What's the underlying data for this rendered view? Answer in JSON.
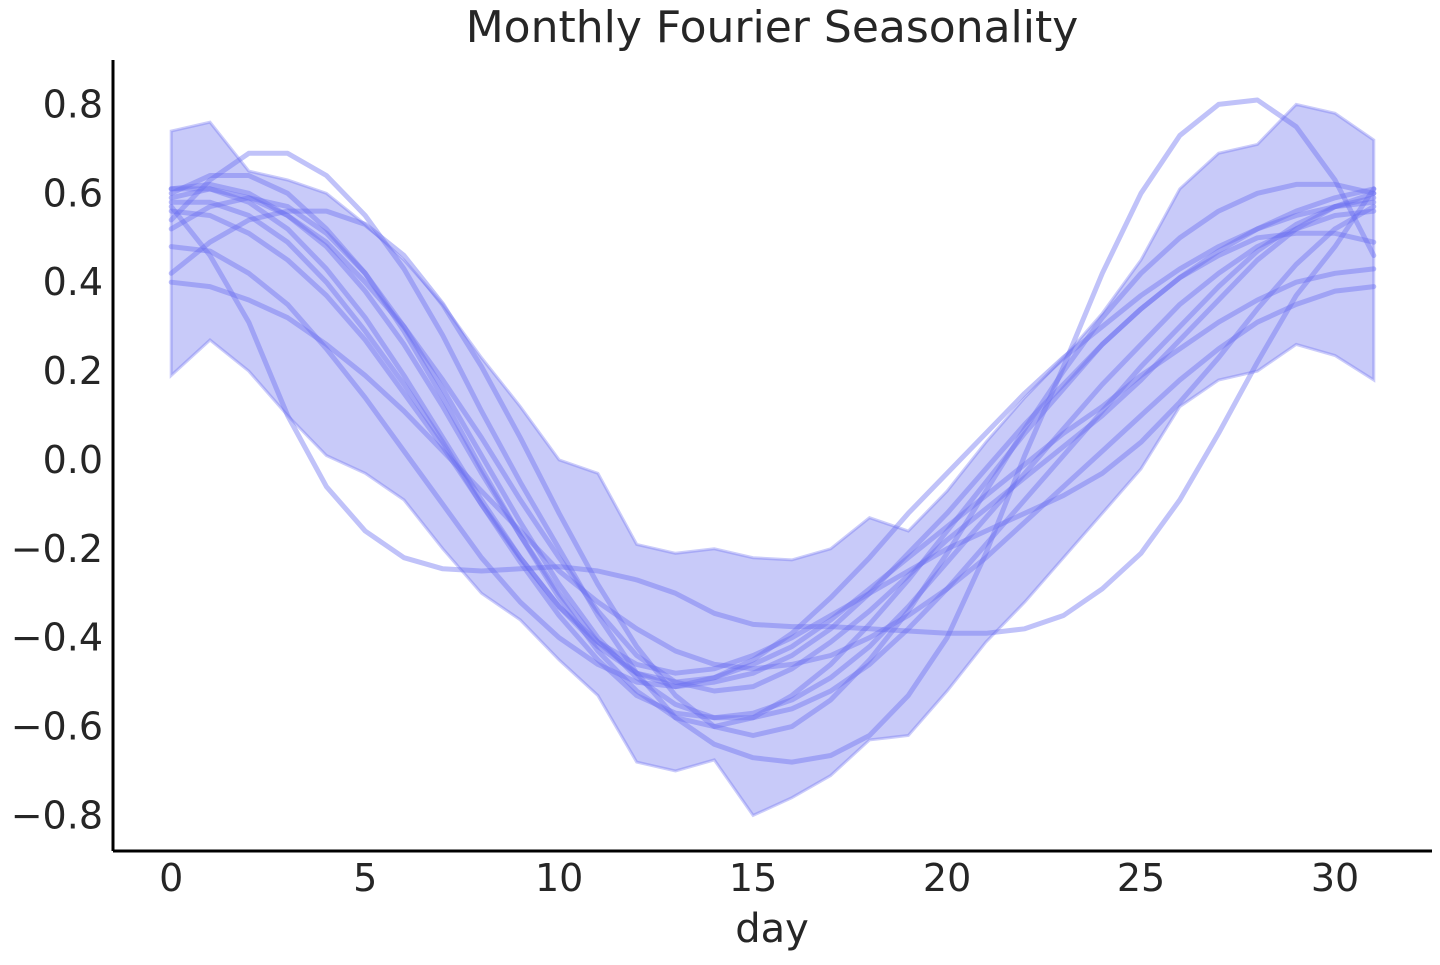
{
  "chart_data": {
    "type": "line",
    "title": "Monthly Fourier Seasonality",
    "xlabel": "day",
    "ylabel": "",
    "xlim": [
      -1.5,
      32.5
    ],
    "ylim": [
      -0.88,
      0.9
    ],
    "xticks": [
      0,
      5,
      10,
      15,
      20,
      25,
      30
    ],
    "xtick_labels": [
      "0",
      "5",
      "10",
      "15",
      "20",
      "25",
      "30"
    ],
    "yticks": [
      0.8,
      0.6,
      0.4,
      0.2,
      0.0,
      -0.2,
      -0.4,
      -0.6,
      -0.8
    ],
    "ytick_labels": [
      "0.8",
      "0.6",
      "0.4",
      "0.2",
      "0.0",
      "−0.2",
      "−0.4",
      "−0.6",
      "−0.8"
    ],
    "grid": false,
    "x": [
      0,
      1,
      2,
      3,
      4,
      5,
      6,
      7,
      8,
      9,
      10,
      11,
      12,
      13,
      14,
      15,
      16,
      17,
      18,
      19,
      20,
      21,
      22,
      23,
      24,
      25,
      26,
      27,
      28,
      29,
      30,
      31
    ],
    "band": {
      "upper": [
        0.74,
        0.76,
        0.65,
        0.63,
        0.6,
        0.53,
        0.45,
        0.35,
        0.23,
        0.12,
        0.0,
        -0.03,
        -0.19,
        -0.21,
        -0.2,
        -0.22,
        -0.225,
        -0.2,
        -0.13,
        -0.16,
        -0.07,
        0.04,
        0.14,
        0.23,
        0.33,
        0.45,
        0.61,
        0.69,
        0.71,
        0.8,
        0.78,
        0.72
      ],
      "lower": [
        0.19,
        0.27,
        0.2,
        0.1,
        0.01,
        -0.03,
        -0.09,
        -0.2,
        -0.3,
        -0.36,
        -0.45,
        -0.53,
        -0.68,
        -0.7,
        -0.675,
        -0.8,
        -0.76,
        -0.71,
        -0.63,
        -0.62,
        -0.52,
        -0.41,
        -0.32,
        -0.22,
        -0.12,
        -0.02,
        0.12,
        0.18,
        0.2,
        0.26,
        0.235,
        0.18
      ]
    },
    "color": "#6a6ef0",
    "band_color": "#c8caf9",
    "series": [
      {
        "values": [
          0.57,
          0.46,
          0.31,
          0.1,
          -0.06,
          -0.16,
          -0.22,
          -0.245,
          -0.25,
          -0.245,
          -0.24,
          -0.25,
          -0.27,
          -0.3,
          -0.345,
          -0.37,
          -0.375,
          -0.375,
          -0.38,
          -0.385,
          -0.39,
          -0.39,
          -0.38,
          -0.35,
          -0.29,
          -0.21,
          -0.09,
          0.06,
          0.22,
          0.37,
          0.48,
          0.61
        ]
      },
      {
        "values": [
          0.54,
          0.63,
          0.69,
          0.69,
          0.64,
          0.55,
          0.43,
          0.28,
          0.11,
          -0.05,
          -0.2,
          -0.35,
          -0.48,
          -0.58,
          -0.64,
          -0.67,
          -0.68,
          -0.665,
          -0.62,
          -0.53,
          -0.4,
          -0.21,
          0.01,
          0.21,
          0.42,
          0.6,
          0.73,
          0.8,
          0.81,
          0.75,
          0.63,
          0.46
        ]
      },
      {
        "values": [
          0.61,
          0.62,
          0.6,
          0.55,
          0.48,
          0.38,
          0.26,
          0.12,
          -0.03,
          -0.17,
          -0.3,
          -0.41,
          -0.48,
          -0.51,
          -0.5,
          -0.48,
          -0.44,
          -0.38,
          -0.3,
          -0.21,
          -0.12,
          -0.02,
          0.08,
          0.17,
          0.26,
          0.34,
          0.41,
          0.47,
          0.52,
          0.56,
          0.59,
          0.61
        ]
      },
      {
        "values": [
          0.58,
          0.58,
          0.55,
          0.49,
          0.4,
          0.29,
          0.17,
          0.04,
          -0.1,
          -0.23,
          -0.35,
          -0.45,
          -0.53,
          -0.57,
          -0.58,
          -0.57,
          -0.54,
          -0.49,
          -0.42,
          -0.33,
          -0.23,
          -0.13,
          -0.03,
          0.07,
          0.17,
          0.26,
          0.35,
          0.42,
          0.48,
          0.52,
          0.55,
          0.56
        ]
      },
      {
        "values": [
          0.6,
          0.64,
          0.64,
          0.6,
          0.52,
          0.42,
          0.29,
          0.14,
          -0.02,
          -0.17,
          -0.31,
          -0.43,
          -0.52,
          -0.58,
          -0.6,
          -0.58,
          -0.53,
          -0.46,
          -0.37,
          -0.27,
          -0.16,
          -0.05,
          0.06,
          0.16,
          0.26,
          0.34,
          0.41,
          0.46,
          0.5,
          0.51,
          0.51,
          0.49
        ]
      },
      {
        "values": [
          0.48,
          0.47,
          0.42,
          0.35,
          0.25,
          0.14,
          0.02,
          -0.1,
          -0.22,
          -0.32,
          -0.4,
          -0.46,
          -0.5,
          -0.51,
          -0.49,
          -0.46,
          -0.42,
          -0.36,
          -0.29,
          -0.22,
          -0.15,
          -0.08,
          -0.01,
          0.06,
          0.12,
          0.19,
          0.25,
          0.31,
          0.36,
          0.4,
          0.42,
          0.43
        ]
      },
      {
        "values": [
          0.4,
          0.39,
          0.36,
          0.32,
          0.26,
          0.19,
          0.11,
          0.02,
          -0.07,
          -0.16,
          -0.25,
          -0.32,
          -0.38,
          -0.43,
          -0.46,
          -0.47,
          -0.46,
          -0.44,
          -0.4,
          -0.35,
          -0.29,
          -0.22,
          -0.14,
          -0.06,
          0.02,
          0.1,
          0.18,
          0.25,
          0.31,
          0.35,
          0.38,
          0.39
        ]
      },
      {
        "values": [
          0.42,
          0.49,
          0.54,
          0.56,
          0.56,
          0.53,
          0.46,
          0.35,
          0.21,
          0.05,
          -0.12,
          -0.28,
          -0.42,
          -0.53,
          -0.6,
          -0.62,
          -0.6,
          -0.54,
          -0.45,
          -0.34,
          -0.21,
          -0.07,
          0.07,
          0.2,
          0.32,
          0.42,
          0.5,
          0.56,
          0.6,
          0.62,
          0.62,
          0.6
        ]
      },
      {
        "values": [
          0.59,
          0.61,
          0.58,
          0.52,
          0.43,
          0.32,
          0.19,
          0.05,
          -0.09,
          -0.22,
          -0.33,
          -0.42,
          -0.48,
          -0.5,
          -0.49,
          -0.45,
          -0.39,
          -0.31,
          -0.22,
          -0.12,
          -0.03,
          0.06,
          0.15,
          0.23,
          0.3,
          0.37,
          0.43,
          0.48,
          0.52,
          0.55,
          0.57,
          0.58
        ]
      },
      {
        "values": [
          0.61,
          0.61,
          0.59,
          0.55,
          0.49,
          0.4,
          0.3,
          0.18,
          0.05,
          -0.09,
          -0.22,
          -0.34,
          -0.44,
          -0.5,
          -0.52,
          -0.51,
          -0.47,
          -0.41,
          -0.34,
          -0.26,
          -0.18,
          -0.11,
          -0.04,
          0.03,
          0.1,
          0.18,
          0.27,
          0.36,
          0.45,
          0.52,
          0.57,
          0.6
        ]
      },
      {
        "values": [
          0.56,
          0.55,
          0.51,
          0.45,
          0.37,
          0.27,
          0.15,
          0.03,
          -0.1,
          -0.22,
          -0.33,
          -0.41,
          -0.46,
          -0.48,
          -0.47,
          -0.44,
          -0.4,
          -0.35,
          -0.3,
          -0.25,
          -0.2,
          -0.16,
          -0.12,
          -0.08,
          -0.03,
          0.04,
          0.13,
          0.23,
          0.34,
          0.44,
          0.52,
          0.57
        ]
      },
      {
        "values": [
          0.52,
          0.57,
          0.59,
          0.57,
          0.51,
          0.42,
          0.3,
          0.16,
          0.01,
          -0.14,
          -0.28,
          -0.4,
          -0.49,
          -0.55,
          -0.58,
          -0.58,
          -0.56,
          -0.52,
          -0.46,
          -0.38,
          -0.29,
          -0.19,
          -0.09,
          0.01,
          0.11,
          0.21,
          0.3,
          0.39,
          0.47,
          0.53,
          0.57,
          0.59
        ]
      }
    ]
  }
}
